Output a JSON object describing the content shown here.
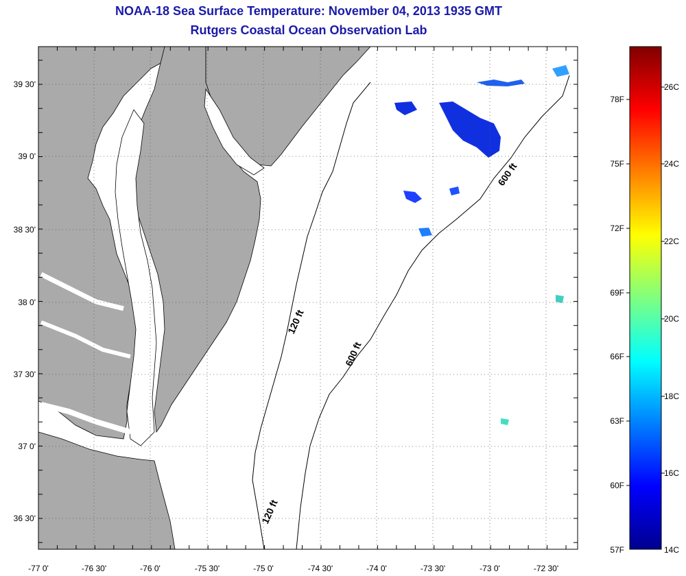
{
  "header": {
    "title": "NOAA-18 Sea Surface Temperature:  November 04, 2013 1935 GMT",
    "subtitle": "Rutgers Coastal Ocean Observation Lab"
  },
  "map": {
    "x_ticks": [
      "-77 0'",
      "-76 30'",
      "-76 0'",
      "-75 30'",
      "-75 0'",
      "-74 30'",
      "-74 0'",
      "-73 30'",
      "-73 0'",
      "-72 30'"
    ],
    "y_ticks": [
      "39 30'",
      "39 0'",
      "38 30'",
      "38 0'",
      "37 30'",
      "37 0'",
      "36 30'"
    ],
    "contours": [
      "120 ft",
      "600 ft",
      "600 ft",
      "120 ft"
    ],
    "colors": {
      "land": "#aaaaaa",
      "water": "#ffffff",
      "coast": "#000000"
    }
  },
  "colorbar": {
    "fahrenheit": [
      "78F",
      "75F",
      "72F",
      "69F",
      "66F",
      "63F",
      "60F",
      "57F"
    ],
    "celsius": [
      "26C",
      "24C",
      "22C",
      "20C",
      "18C",
      "16C",
      "14C"
    ]
  }
}
